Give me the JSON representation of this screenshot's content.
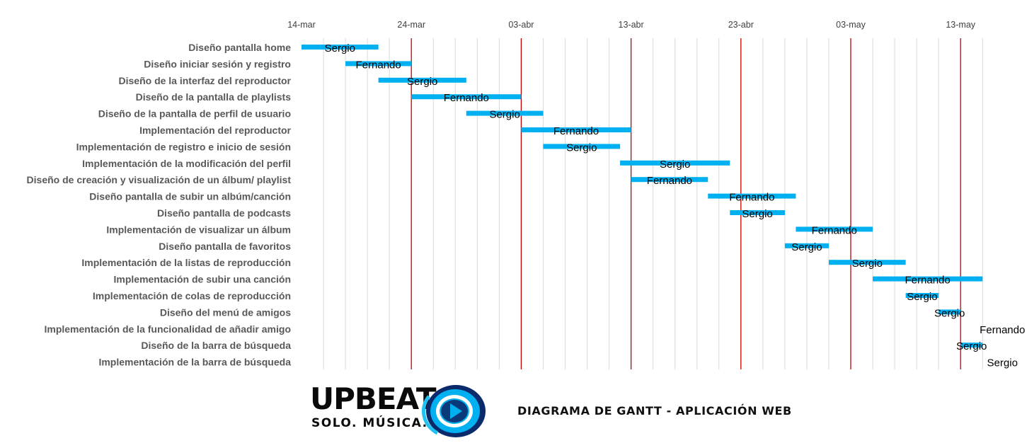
{
  "chart_data": {
    "type": "gantt",
    "x_start": "2024-03-14",
    "x_end": "2024-05-16",
    "x_tick_labels": [
      "14-mar",
      "24-mar",
      "03-abr",
      "13-abr",
      "23-abr",
      "03-may",
      "13-may"
    ],
    "major_gridlines_color": "#c00000",
    "minor_gridlines": "every 2 days",
    "bar_color": "#00b0f0",
    "tasks": [
      {
        "label": "Diseño pantalla home",
        "start": "2024-03-14",
        "end": "2024-03-21",
        "owner": "Sergio"
      },
      {
        "label": "Diseño iniciar sesión y registro",
        "start": "2024-03-18",
        "end": "2024-03-24",
        "owner": "Fernando"
      },
      {
        "label": "Diseño de la interfaz del reproductor",
        "start": "2024-03-21",
        "end": "2024-03-29",
        "owner": "Sergio"
      },
      {
        "label": "Diseño de la pantalla de playlists",
        "start": "2024-03-24",
        "end": "2024-04-03",
        "owner": "Fernando"
      },
      {
        "label": "Diseño de la pantalla de perfil de usuario",
        "start": "2024-03-29",
        "end": "2024-04-05",
        "owner": "Sergio"
      },
      {
        "label": "Implementación del reproductor",
        "start": "2024-04-03",
        "end": "2024-04-13",
        "owner": "Fernando"
      },
      {
        "label": "Implementación de registro e inicio de sesión",
        "start": "2024-04-05",
        "end": "2024-04-12",
        "owner": "Sergio"
      },
      {
        "label": "Implementación de la modificación del perfil",
        "start": "2024-04-12",
        "end": "2024-04-22",
        "owner": "Sergio"
      },
      {
        "label": "Diseño de creación y visualización de un álbum/ playlist",
        "start": "2024-04-13",
        "end": "2024-04-20",
        "owner": "Fernando"
      },
      {
        "label": "Diseño pantalla de subir un albúm/canción",
        "start": "2024-04-20",
        "end": "2024-04-28",
        "owner": "Fernando"
      },
      {
        "label": "Diseño pantalla de podcasts",
        "start": "2024-04-22",
        "end": "2024-04-27",
        "owner": "Sergio"
      },
      {
        "label": "Implementación de visualizar un álbum",
        "start": "2024-04-28",
        "end": "2024-05-05",
        "owner": "Fernando"
      },
      {
        "label": "Diseño pantalla de favoritos",
        "start": "2024-04-27",
        "end": "2024-05-01",
        "owner": "Sergio"
      },
      {
        "label": "Implementación de la listas de reproducción",
        "start": "2024-05-01",
        "end": "2024-05-08",
        "owner": "Sergio"
      },
      {
        "label": "Implementación de subir una canción",
        "start": "2024-05-05",
        "end": "2024-05-15",
        "owner": "Fernando"
      },
      {
        "label": "Implementación de colas de reproducción",
        "start": "2024-05-08",
        "end": "2024-05-11",
        "owner": "Sergio"
      },
      {
        "label": "Diseño del menú de amigos",
        "start": "2024-05-11",
        "end": "2024-05-13",
        "owner": "Sergio"
      },
      {
        "label": "Implementación de la funcionalidad de añadir amigo",
        "start": "2024-05-15",
        "end": "2024-05-15",
        "owner": "Fernando"
      },
      {
        "label": "Diseño de la barra de búsqueda",
        "start": "2024-05-13",
        "end": "2024-05-15",
        "owner": "Sergio"
      },
      {
        "label": "Implementación de la barra de  búsqueda",
        "start": "2024-05-15",
        "end": "2024-05-15",
        "owner": "Sergio"
      }
    ]
  },
  "footer": {
    "logo_word": "UPBEAT",
    "logo_tagline": "SOLO. MÚSICA.",
    "subtitle": "DIAGRAMA DE GANTT - APLICACIÓN WEB"
  }
}
